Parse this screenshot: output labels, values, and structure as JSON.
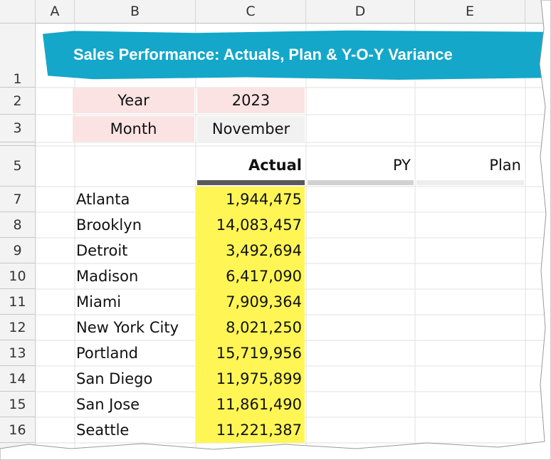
{
  "columns": [
    "A",
    "B",
    "C",
    "D",
    "E"
  ],
  "title": "Sales Performance: Actuals, Plan & Y-O-Y Variance",
  "inputs": {
    "year_label": "Year",
    "year_value": "2023",
    "month_label": "Month",
    "month_value": "November"
  },
  "headers": [
    "Actual",
    "PY",
    "Plan"
  ],
  "row_numbers": {
    "title": "1",
    "year": "2",
    "month": "3",
    "headers": "5",
    "data": [
      "7",
      "8",
      "9",
      "10",
      "11",
      "12",
      "13",
      "14",
      "15",
      "16"
    ]
  },
  "table": {
    "rows": [
      [
        "Atlanta",
        "1,944,475"
      ],
      [
        "Brooklyn",
        "14,083,457"
      ],
      [
        "Detroit",
        "3,492,694"
      ],
      [
        "Madison",
        "6,417,090"
      ],
      [
        "Miami",
        "7,909,364"
      ],
      [
        "New York City",
        "8,021,250"
      ],
      [
        "Portland",
        "15,719,956"
      ],
      [
        "San Diego",
        "11,975,899"
      ],
      [
        "San Jose",
        "11,861,490"
      ],
      [
        "Seattle",
        "11,221,387"
      ]
    ]
  }
}
